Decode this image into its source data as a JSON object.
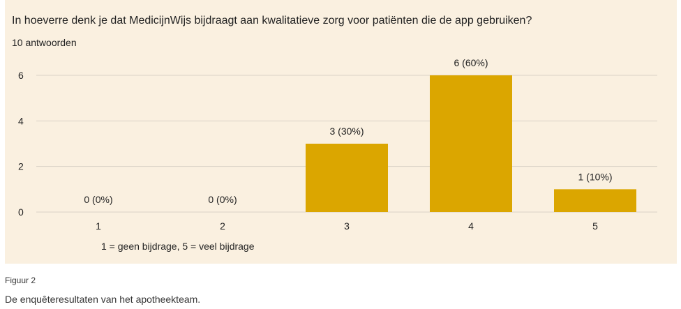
{
  "question_title": "In hoeverre denk je dat MedicijnWijs bijdraagt aan kwalitatieve zorg voor patiënten die de app gebruiken?",
  "response_count": "10 antwoorden",
  "scale_note": "1 = geen bijdrage, 5 = veel bijdrage",
  "figure": {
    "label": "Figuur 2",
    "caption": "De enquêteresultaten van het apotheekteam."
  },
  "colors": {
    "panel_bg": "#faf0e0",
    "bar": "#dba600",
    "grid": "#d9d2c6"
  },
  "chart_data": {
    "type": "bar",
    "title": "In hoeverre denk je dat MedicijnWijs bijdraagt aan kwalitatieve zorg voor patiënten die de app gebruiken?",
    "categories": [
      "1",
      "2",
      "3",
      "4",
      "5"
    ],
    "values": [
      0,
      0,
      3,
      6,
      1
    ],
    "data_labels": [
      "0 (0%)",
      "0 (0%)",
      "3 (30%)",
      "6 (60%)",
      "1 (10%)"
    ],
    "yticks": [
      0,
      2,
      4,
      6
    ],
    "ylim": [
      0,
      6
    ],
    "xlabel": "1 = geen bijdrage, 5 = veel bijdrage",
    "ylabel": "",
    "grid": true
  }
}
